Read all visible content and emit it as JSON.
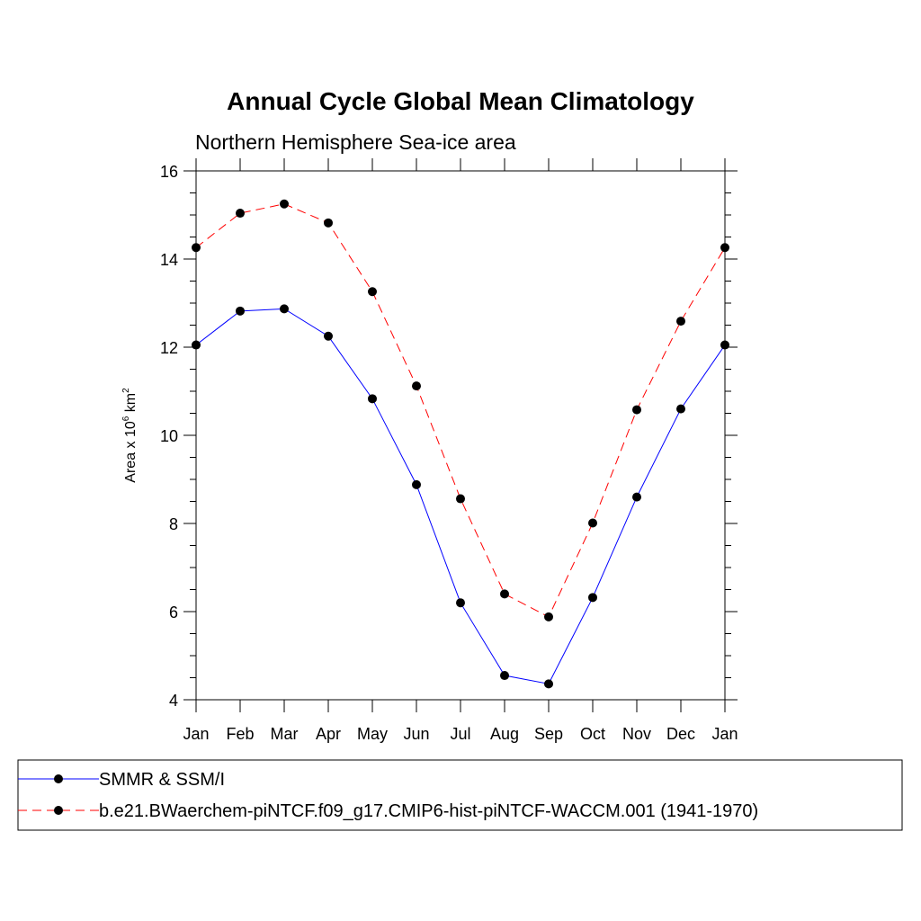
{
  "chart_data": {
    "type": "line",
    "title": "Annual Cycle Global Mean Climatology",
    "subtitle": "Northern Hemisphere Sea-ice area",
    "ylabel": {
      "prefix": "Area x 10",
      "exp1": "6",
      "mid": " km",
      "exp2": "2"
    },
    "categories": [
      "Jan",
      "Feb",
      "Mar",
      "Apr",
      "May",
      "Jun",
      "Jul",
      "Aug",
      "Sep",
      "Oct",
      "Nov",
      "Dec",
      "Jan"
    ],
    "ylim": [
      4,
      16
    ],
    "yticks": [
      4,
      6,
      8,
      10,
      12,
      14,
      16
    ],
    "series": [
      {
        "name": "SMMR & SSM/I",
        "color": "#0000ff",
        "dash": "none",
        "values": [
          12.05,
          12.82,
          12.87,
          12.25,
          10.83,
          8.88,
          6.2,
          4.55,
          4.36,
          6.32,
          8.6,
          10.6,
          12.05
        ]
      },
      {
        "name": "b.e21.BWaerchem-piNTCF.f09_g17.CMIP6-hist-piNTCF-WACCM.001 (1941-1970)",
        "color": "#ff0000",
        "dash": "dashed",
        "values": [
          14.26,
          15.04,
          15.25,
          14.82,
          13.26,
          11.12,
          8.56,
          6.4,
          5.88,
          8.01,
          10.58,
          12.59,
          14.26
        ]
      }
    ],
    "marker_color": "#000000",
    "legend_position": "bottom"
  }
}
